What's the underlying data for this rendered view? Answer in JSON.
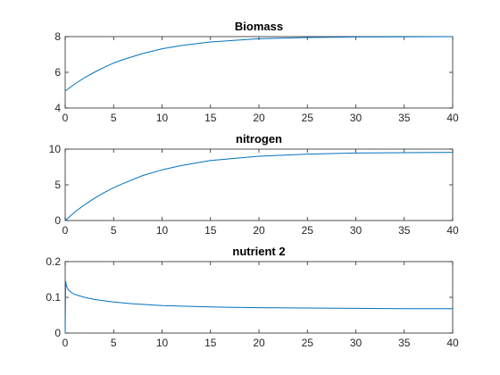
{
  "chart_data": [
    {
      "type": "line",
      "title": "Biomass",
      "xlim": [
        0,
        40
      ],
      "ylim": [
        4,
        8
      ],
      "xticks": [
        "0",
        "5",
        "10",
        "15",
        "20",
        "25",
        "30",
        "35",
        "40"
      ],
      "yticks": [
        "4",
        "6",
        "8"
      ],
      "grid": false,
      "color": "#0072bd",
      "series": [
        {
          "x": [
            0,
            1,
            2,
            3,
            4,
            5,
            6,
            8,
            10,
            12,
            15,
            20,
            25,
            30,
            35,
            40
          ],
          "y": [
            4.95,
            5.35,
            5.7,
            6.0,
            6.28,
            6.52,
            6.72,
            7.05,
            7.32,
            7.5,
            7.7,
            7.88,
            7.95,
            7.98,
            7.99,
            8.0
          ]
        }
      ]
    },
    {
      "type": "line",
      "title": "nitrogen",
      "xlim": [
        0,
        40
      ],
      "ylim": [
        0,
        10
      ],
      "xticks": [
        "0",
        "5",
        "10",
        "15",
        "20",
        "25",
        "30",
        "35",
        "40"
      ],
      "yticks": [
        "0",
        "5",
        "10"
      ],
      "grid": false,
      "color": "#0072bd",
      "series": [
        {
          "x": [
            0,
            1,
            2,
            3,
            4,
            5,
            6,
            8,
            10,
            12,
            15,
            20,
            25,
            30,
            35,
            40
          ],
          "y": [
            0.0,
            1.2,
            2.2,
            3.1,
            3.9,
            4.6,
            5.2,
            6.3,
            7.1,
            7.7,
            8.4,
            9.0,
            9.3,
            9.45,
            9.5,
            9.55
          ]
        }
      ]
    },
    {
      "type": "line",
      "title": "nutrient 2",
      "xlim": [
        0,
        40
      ],
      "ylim": [
        0,
        0.2
      ],
      "xticks": [
        "0",
        "5",
        "10",
        "15",
        "20",
        "25",
        "30",
        "35",
        "40"
      ],
      "yticks": [
        "0",
        "0.1",
        "0.2"
      ],
      "grid": false,
      "color": "#0072bd",
      "series": [
        {
          "x": [
            0,
            0.05,
            0.15,
            0.3,
            0.6,
            1,
            2,
            3,
            5,
            7,
            10,
            15,
            20,
            25,
            30,
            35,
            40
          ],
          "y": [
            0.0,
            0.145,
            0.13,
            0.122,
            0.114,
            0.108,
            0.1,
            0.094,
            0.087,
            0.082,
            0.077,
            0.073,
            0.071,
            0.07,
            0.069,
            0.068,
            0.068
          ]
        }
      ]
    }
  ]
}
